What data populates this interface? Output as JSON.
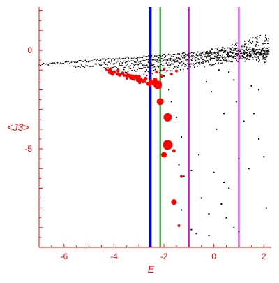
{
  "chart_data": {
    "type": "scatter",
    "xlabel": "E",
    "ylabel": "<J3>",
    "xlim": [
      -7.0,
      2.3
    ],
    "ylim": [
      -10.0,
      2.2
    ],
    "xticks": [
      -6,
      -4,
      -2,
      0,
      2
    ],
    "yticks": [
      0,
      -5
    ],
    "grid": false,
    "colors": {
      "axis": "#ff0000",
      "black_points": "#000000",
      "red_points": "#ff0000",
      "blue_line": "#0000ee",
      "green_line": "#007700",
      "magenta_line": "#ee00ee"
    },
    "vertical_lines": [
      {
        "x": -2.55,
        "color": "blue_line",
        "weight": "thick"
      },
      {
        "x": -2.15,
        "color": "green_line",
        "weight": "normal"
      },
      {
        "x": -1.0,
        "color": "magenta_line",
        "weight": "normal"
      },
      {
        "x": 1.0,
        "color": "magenta_line",
        "weight": "normal"
      }
    ],
    "black_bands": [
      {
        "x0": -7.0,
        "y0": -0.75,
        "x1": 2.2,
        "y1": 0.1,
        "count": 150,
        "spread": 0.03
      },
      {
        "x0": -5.6,
        "y0": -0.85,
        "x1": 2.2,
        "y1": 0.0,
        "count": 130,
        "spread": 0.04
      },
      {
        "x0": -4.4,
        "y0": -0.95,
        "x1": 2.2,
        "y1": -0.05,
        "count": 120,
        "spread": 0.05
      },
      {
        "x0": -3.6,
        "y0": -1.05,
        "x1": 2.2,
        "y1": -0.15,
        "count": 110,
        "spread": 0.06
      },
      {
        "x0": -2.8,
        "y0": -1.2,
        "x1": 2.2,
        "y1": -0.25,
        "count": 90,
        "spread": 0.07
      }
    ],
    "black_cloud": {
      "x": [
        -0.6,
        2.2
      ],
      "y": [
        -0.3,
        1.3
      ],
      "count": 150
    },
    "black_tail_points": [
      [
        -1.7,
        -2.6
      ],
      [
        -1.5,
        -3.4
      ],
      [
        -1.3,
        -4.4
      ],
      [
        -1.4,
        -5.8
      ],
      [
        -1.2,
        -6.4
      ],
      [
        -0.9,
        -6.1
      ],
      [
        -0.6,
        -5.3
      ],
      [
        -0.5,
        -7.5
      ],
      [
        -0.2,
        -8.3
      ],
      [
        -1.3,
        -8.1
      ],
      [
        -0.9,
        -9.1
      ],
      [
        -0.7,
        -9.3
      ],
      [
        -0.2,
        -9.4
      ],
      [
        0.1,
        -4.0
      ],
      [
        0.0,
        -6.2
      ],
      [
        0.4,
        -6.7
      ],
      [
        0.6,
        -7.0
      ],
      [
        0.3,
        -7.8
      ],
      [
        0.5,
        -8.5
      ],
      [
        0.8,
        -9.0
      ],
      [
        1.0,
        -9.2
      ],
      [
        0.4,
        -3.2
      ],
      [
        0.8,
        -1.5
      ],
      [
        1.0,
        -5.5
      ],
      [
        1.4,
        -6.0
      ],
      [
        1.6,
        -3.2
      ],
      [
        1.8,
        -2.0
      ],
      [
        1.5,
        -1.8
      ],
      [
        1.8,
        -4.5
      ],
      [
        2.0,
        -5.4
      ],
      [
        2.1,
        -8.0
      ],
      [
        0.6,
        -1.1
      ],
      [
        0.9,
        -2.6
      ],
      [
        1.2,
        -3.6
      ],
      [
        -0.3,
        -1.6
      ],
      [
        -0.1,
        -2.1
      ],
      [
        -2.0,
        -1.3
      ],
      [
        -1.8,
        -2.0
      ],
      [
        -2.3,
        -1.9
      ],
      [
        0.2,
        -1.0
      ]
    ],
    "red_band": {
      "x": [
        -4.3,
        -2.1
      ],
      "y": [
        -1.0,
        -1.8
      ],
      "count": 70,
      "spread": 0.1
    },
    "red_points": [
      {
        "x": -2.25,
        "y": -1.75,
        "size": 6
      },
      {
        "x": -2.15,
        "y": -2.6,
        "size": 5
      },
      {
        "x": -1.85,
        "y": -3.4,
        "size": 6
      },
      {
        "x": -1.85,
        "y": -4.8,
        "size": 7
      },
      {
        "x": -2.0,
        "y": -5.3,
        "size": 4
      },
      {
        "x": -1.6,
        "y": -5.1,
        "size": 2.5
      },
      {
        "x": -1.3,
        "y": -6.4,
        "size": 2
      },
      {
        "x": -1.6,
        "y": -7.7,
        "size": 4
      },
      {
        "x": -1.4,
        "y": -8.9,
        "size": 2
      },
      {
        "x": -2.3,
        "y": -1.1,
        "size": 2
      },
      {
        "x": -2.0,
        "y": -0.95,
        "size": 2
      },
      {
        "x": -2.1,
        "y": -1.3,
        "size": 2.5
      },
      {
        "x": -2.35,
        "y": -1.5,
        "size": 3
      },
      {
        "x": -1.7,
        "y": -1.2,
        "size": 2
      },
      {
        "x": -1.5,
        "y": -1.05,
        "size": 2
      }
    ]
  }
}
